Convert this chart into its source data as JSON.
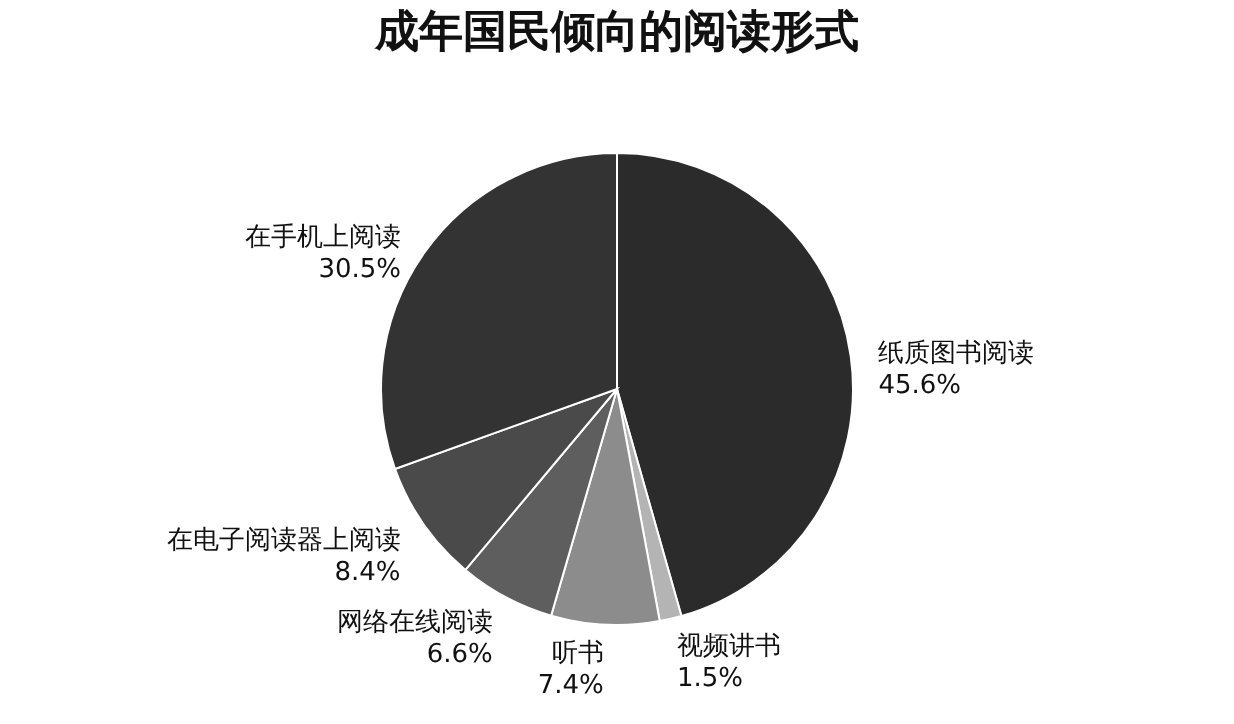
{
  "chart_data": {
    "type": "pie",
    "title": "成年国民倾向的阅读形式",
    "categories": [
      "纸质图书阅读",
      "视频讲书",
      "听书",
      "网络在线阅读",
      "在电子阅读器上阅读",
      "在手机上阅读"
    ],
    "values": [
      45.6,
      1.5,
      7.4,
      6.6,
      8.4,
      30.5
    ],
    "value_labels": [
      "45.6%",
      "1.5%",
      "7.4%",
      "6.6%",
      "8.4%",
      "30.5%"
    ],
    "colors": [
      "#2b2b2b",
      "#b4b4b4",
      "#8c8c8c",
      "#5e5e5e",
      "#4a4a4a",
      "#333333"
    ],
    "legend": false
  }
}
